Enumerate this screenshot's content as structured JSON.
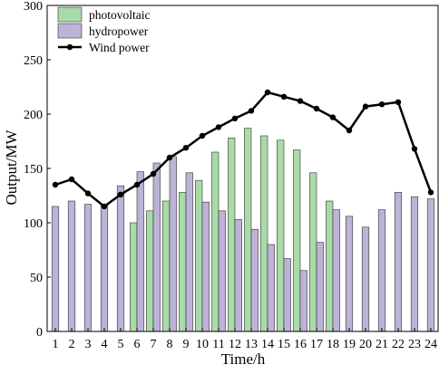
{
  "chart_data": {
    "type": "bar",
    "title": "",
    "xlabel": "Time/h",
    "ylabel": "Output/MW",
    "ylim": [
      0,
      300
    ],
    "yticks": [
      0,
      50,
      100,
      150,
      200,
      250,
      300
    ],
    "categories": [
      "1",
      "2",
      "3",
      "4",
      "5",
      "6",
      "7",
      "8",
      "9",
      "10",
      "11",
      "12",
      "13",
      "14",
      "15",
      "16",
      "17",
      "18",
      "19",
      "20",
      "21",
      "22",
      "23",
      "24"
    ],
    "series": [
      {
        "name": "photovoltaic",
        "type": "bar",
        "color": "#a8dba8",
        "values": [
          0,
          0,
          0,
          0,
          0,
          100,
          111,
          120,
          128,
          139,
          165,
          178,
          187,
          180,
          176,
          167,
          146,
          120,
          0,
          0,
          0,
          0,
          0,
          0
        ]
      },
      {
        "name": "hydropower",
        "type": "bar",
        "color": "#bdb3d6",
        "values": [
          115,
          120,
          117,
          117,
          134,
          147,
          155,
          161,
          146,
          119,
          111,
          103,
          94,
          80,
          67,
          56,
          82,
          112,
          106,
          96,
          112,
          128,
          124,
          122
        ]
      },
      {
        "name": "Wind power",
        "type": "line",
        "color": "#000000",
        "values": [
          135,
          140,
          127,
          115,
          126,
          135,
          145,
          160,
          169,
          180,
          188,
          196,
          203,
          220,
          216,
          212,
          205,
          197,
          185,
          207,
          209,
          211,
          168,
          128
        ]
      }
    ],
    "legend_position": "top-left"
  }
}
